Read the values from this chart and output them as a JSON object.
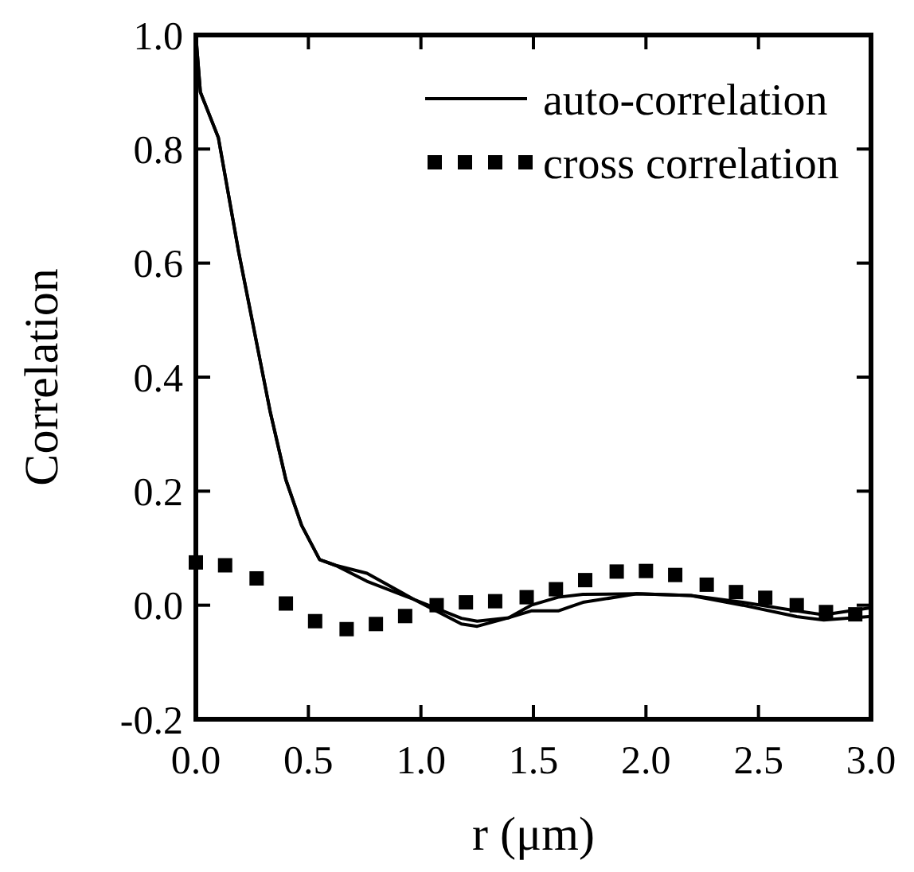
{
  "chart_data": {
    "type": "line",
    "xlabel": "r (μm)",
    "ylabel": "Correlation",
    "xlim": [
      0,
      3
    ],
    "ylim": [
      -0.2,
      1.0
    ],
    "xticks": [
      {
        "value": 0,
        "label": "0.0"
      },
      0.5,
      {
        "value": 1,
        "label": "1.0"
      },
      1.5,
      {
        "value": 2,
        "label": "2.0"
      },
      2.5,
      {
        "value": 3,
        "label": "3.0"
      }
    ],
    "yticks": [
      {
        "value": -0.2,
        "label": "-0.2"
      },
      {
        "value": 0,
        "label": "0.0"
      },
      0.2,
      0.4,
      0.6,
      0.8,
      {
        "value": 1,
        "label": "1.0"
      }
    ],
    "legend": "top right",
    "grid": false,
    "series": [
      {
        "name": "auto-correlation",
        "color": "#000000",
        "line_style": "solid",
        "x": [
          0,
          0.02,
          0.1,
          0.19,
          0.26,
          0.33,
          0.4,
          0.47,
          0.55,
          0.62,
          0.76,
          0.97,
          1.18,
          1.25,
          1.39,
          1.49,
          1.61,
          1.72,
          1.96,
          2.2,
          2.43,
          2.67,
          2.79,
          2.99
        ],
        "values": [
          1.0,
          0.9,
          0.82,
          0.62,
          0.48,
          0.34,
          0.22,
          0.14,
          0.08,
          0.07,
          0.056,
          0.01,
          -0.033,
          -0.037,
          -0.022,
          -0.01,
          -0.01,
          0.005,
          0.02,
          0.017,
          0.0,
          -0.02,
          -0.026,
          -0.02
        ]
      },
      {
        "color": "#000000",
        "line_style": "solid",
        "x": [
          0,
          0.02,
          0.1,
          0.19,
          0.26,
          0.33,
          0.4,
          0.47,
          0.55,
          0.62,
          0.76,
          0.97,
          1.18,
          1.25,
          1.39,
          1.49,
          1.61,
          1.72,
          1.96,
          2.2,
          2.43,
          2.67,
          2.79,
          2.99
        ],
        "values": [
          1.0,
          0.9,
          0.82,
          0.62,
          0.48,
          0.34,
          0.22,
          0.14,
          0.08,
          0.07,
          0.042,
          0.01,
          -0.023,
          -0.028,
          -0.022,
          0.0,
          0.014,
          0.019,
          0.02,
          0.017,
          0.005,
          -0.01,
          -0.017,
          -0.005
        ]
      },
      {
        "name": "cross correlation",
        "type": "scatter",
        "color": "#000000",
        "marker": "square",
        "x": [
          0,
          0.13,
          0.27,
          0.4,
          0.53,
          0.67,
          0.8,
          0.93,
          1.07,
          1.2,
          1.33,
          1.47,
          1.6,
          1.73,
          1.87,
          2.0,
          2.13,
          2.27,
          2.4,
          2.53,
          2.67,
          2.8,
          2.93
        ],
        "values": [
          0.075,
          0.07,
          0.047,
          0.003,
          -0.028,
          -0.042,
          -0.033,
          -0.019,
          0.0,
          0.005,
          0.007,
          0.014,
          0.028,
          0.044,
          0.059,
          0.06,
          0.053,
          0.036,
          0.023,
          0.013,
          0.0,
          -0.012,
          -0.016
        ]
      }
    ]
  }
}
